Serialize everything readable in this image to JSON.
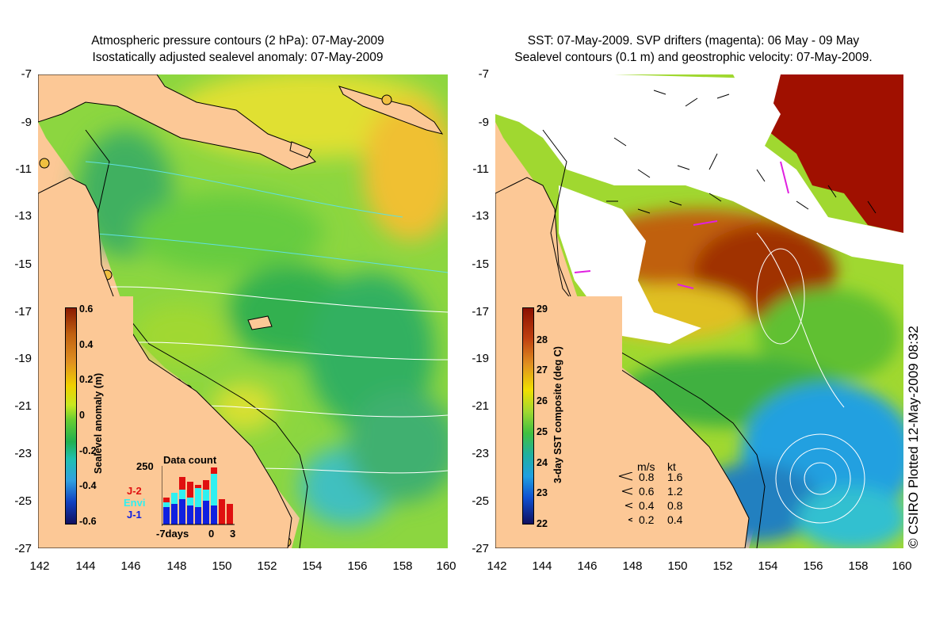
{
  "left_panel": {
    "title_line1": "Atmospheric pressure contours (2 hPa): 07-May-2009",
    "title_line2": "Isostatically adjusted sealevel anomaly: 07-May-2009",
    "colorbar": {
      "label": "Sealevel anomaly (m)",
      "ticks": [
        "0.6",
        "0.4",
        "0.2",
        "0",
        "-0.2",
        "-0.4",
        "-0.6"
      ]
    },
    "inset": {
      "title": "Data count",
      "y_max": "250",
      "series": [
        "J-2",
        "Envi",
        "J-1"
      ],
      "x_labels": [
        "-7days",
        "0",
        "3"
      ],
      "colors": {
        "J-2": "#e01010",
        "Envi": "#30f0f0",
        "J-1": "#1020e0"
      }
    }
  },
  "right_panel": {
    "title_line1": "SST: 07-May-2009. SVP drifters (magenta): 06 May - 09 May",
    "title_line2": "Sealevel contours (0.1 m) and geostrophic velocity: 07-May-2009.",
    "colorbar": {
      "label": "3-day SST composite (deg C)",
      "ticks": [
        "29",
        "28",
        "27",
        "26",
        "25",
        "24",
        "23",
        "22"
      ]
    },
    "velocity_legend": {
      "header_ms": "m/s",
      "header_kt": "kt",
      "rows": [
        {
          "ms": "0.8",
          "kt": "1.6"
        },
        {
          "ms": "0.6",
          "kt": "1.2"
        },
        {
          "ms": "0.4",
          "kt": "0.8"
        },
        {
          "ms": "0.2",
          "kt": "0.4"
        }
      ]
    }
  },
  "axes": {
    "lat_ticks": [
      "-7",
      "-9",
      "-11",
      "-13",
      "-15",
      "-17",
      "-19",
      "-21",
      "-23",
      "-25",
      "-27"
    ],
    "lon_ticks": [
      "142",
      "144",
      "146",
      "148",
      "150",
      "152",
      "154",
      "156",
      "158",
      "160"
    ]
  },
  "credit": "© CSIRO Plotted 12-May-2009 08:32",
  "colors": {
    "land": "#fcc896",
    "sla_green": "#66cc33",
    "sla_yellow": "#e8e830",
    "sst_red": "#a01000",
    "cloud": "#ffffff"
  }
}
